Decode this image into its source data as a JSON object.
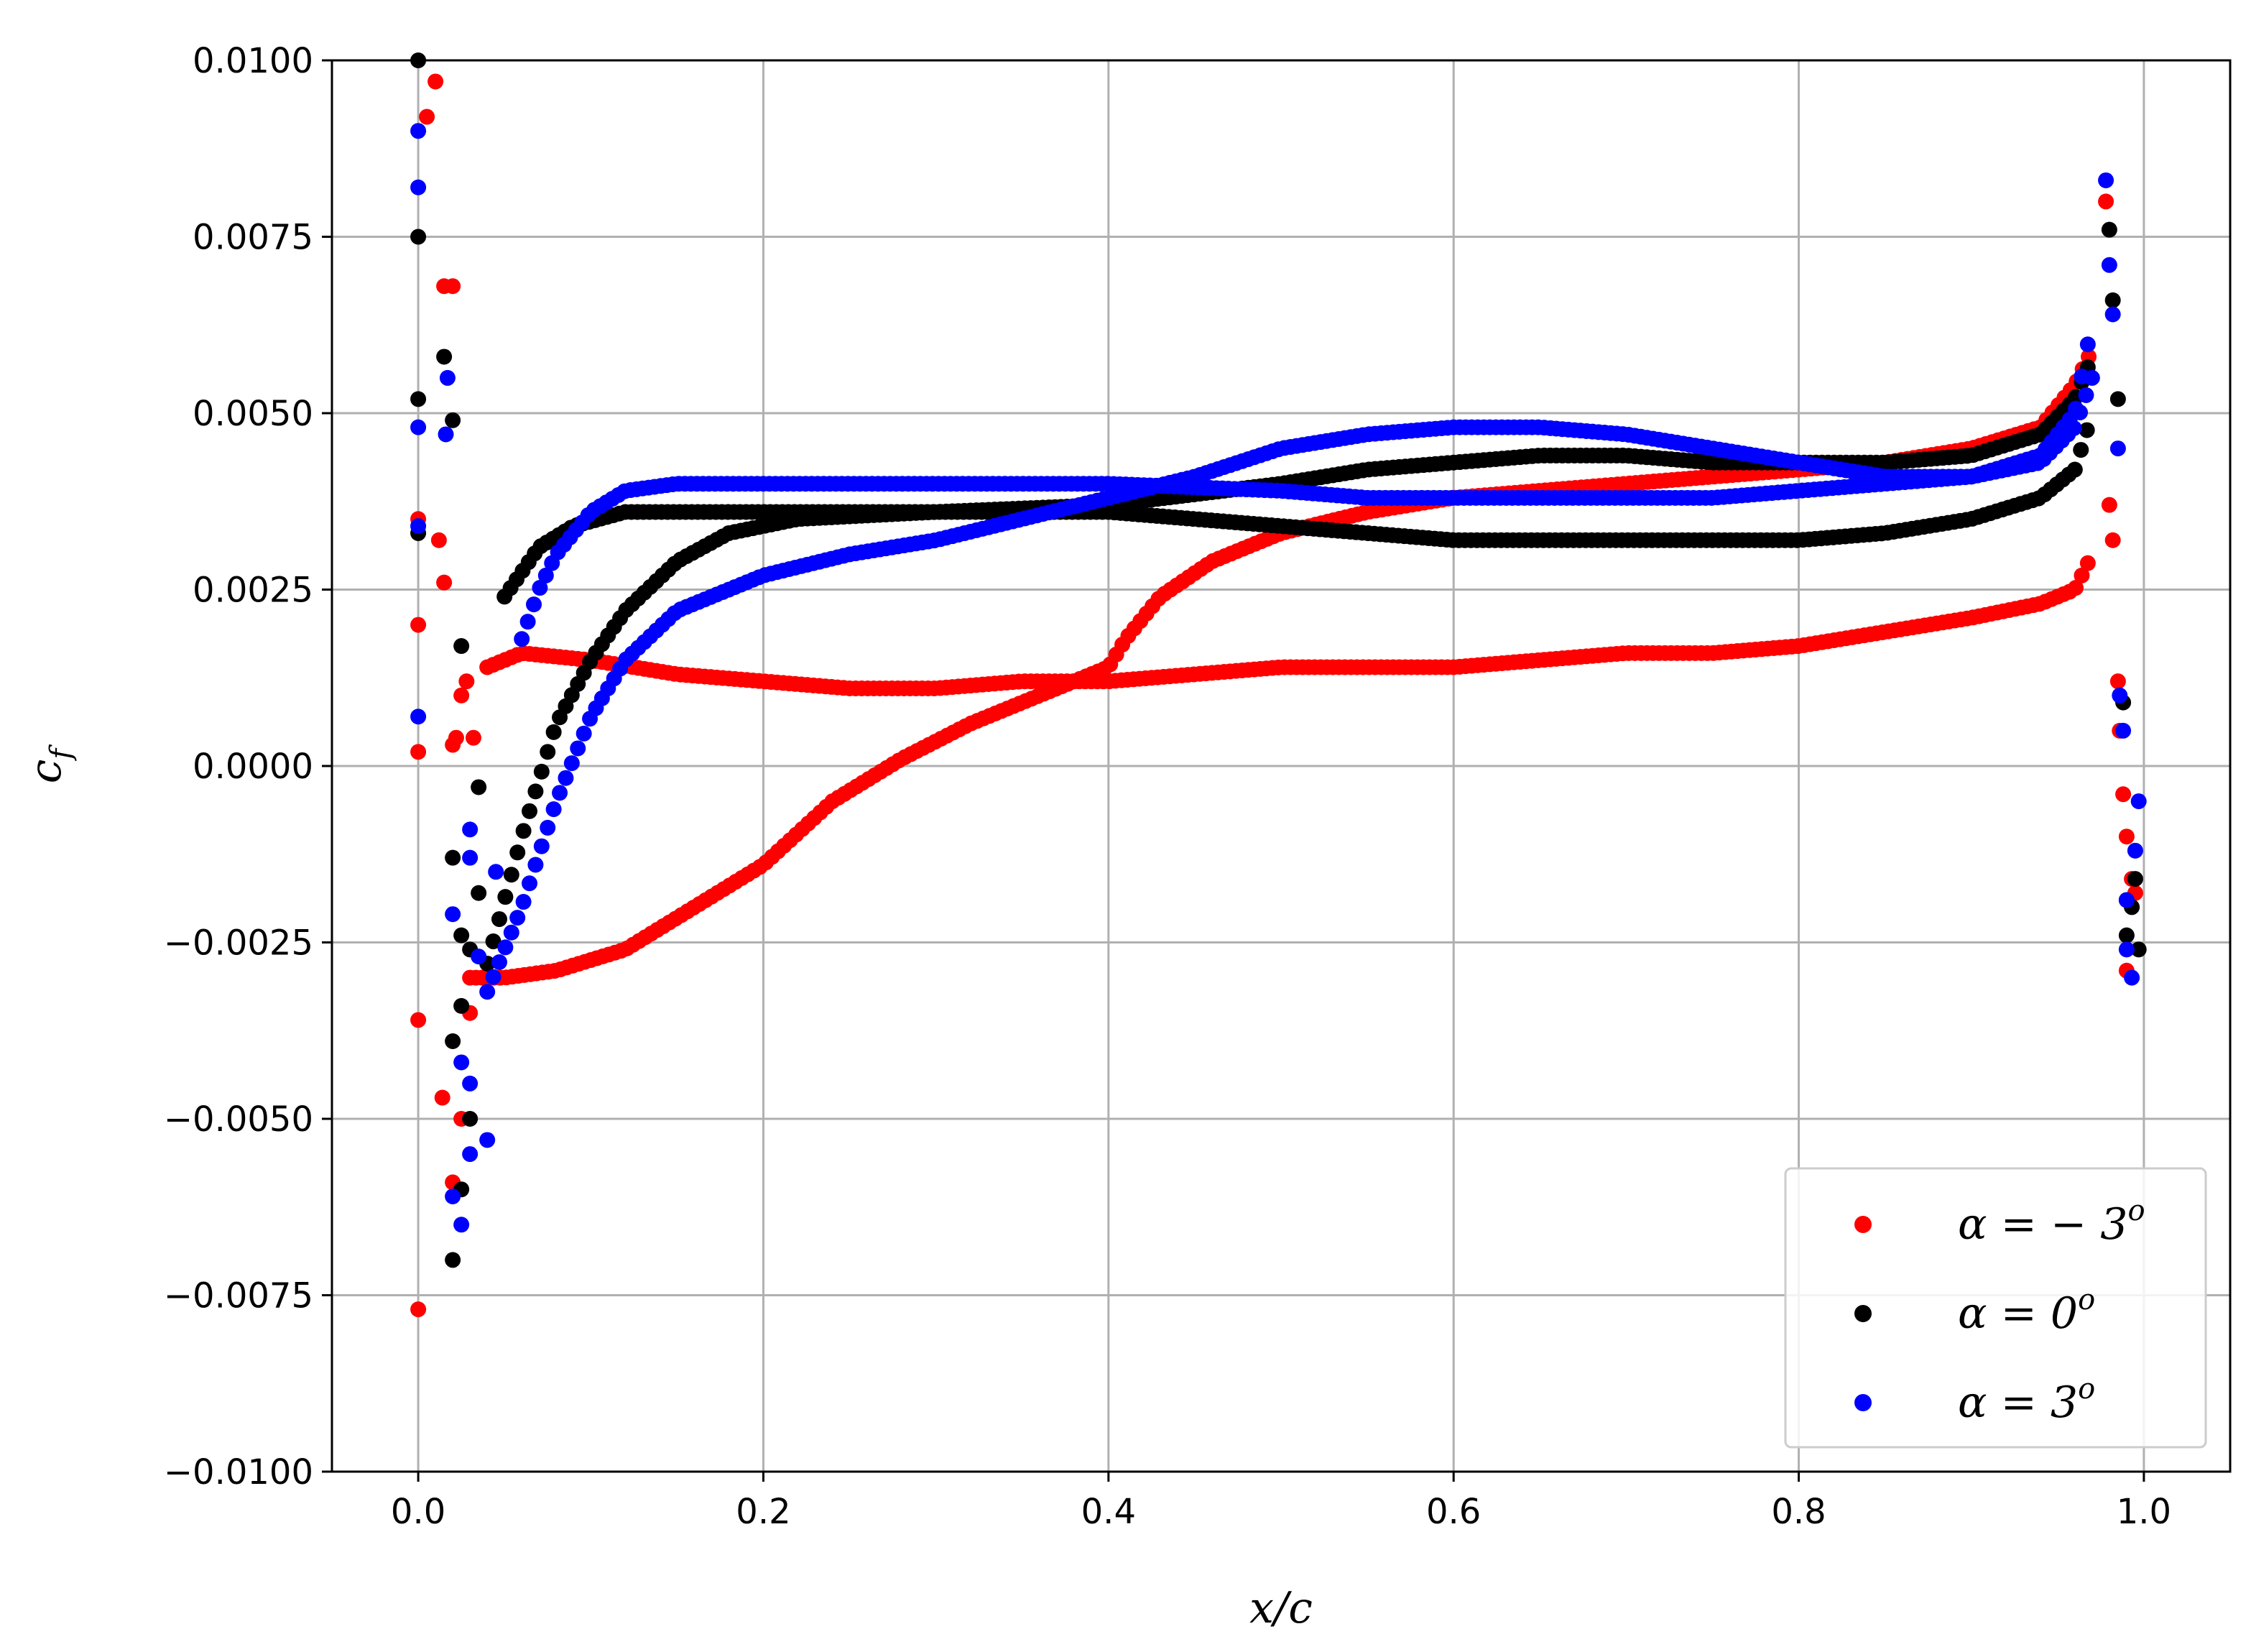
{
  "chart_data": {
    "type": "scatter",
    "title": "",
    "xlabel": "x/c",
    "ylabel": "c",
    "ylabel_sub": "f",
    "xlim": [
      -0.05,
      1.05
    ],
    "ylim": [
      -0.01,
      0.01
    ],
    "xticks": [
      "0.0",
      "0.2",
      "0.4",
      "0.6",
      "0.8",
      "1.0"
    ],
    "xtick_values": [
      0.0,
      0.2,
      0.4,
      0.6,
      0.8,
      1.0
    ],
    "yticks": [
      "0.0100",
      "0.0075",
      "0.0050",
      "0.0025",
      "0.0000",
      "−0.0025",
      "−0.0050",
      "−0.0075",
      "−0.0100"
    ],
    "ytick_values": [
      0.01,
      0.0075,
      0.005,
      0.0025,
      0.0,
      -0.0025,
      -0.005,
      -0.0075,
      -0.01
    ],
    "grid": true,
    "legend_position": "bottom-right",
    "series": [
      {
        "name": "α = − 3",
        "name_sup": "o",
        "color": "#ff0000",
        "branches": [
          {
            "x": [
              0.04,
              0.06,
              0.1,
              0.15,
              0.2,
              0.25,
              0.3,
              0.35,
              0.4,
              0.45,
              0.5,
              0.55,
              0.6,
              0.65,
              0.7,
              0.75,
              0.8,
              0.85,
              0.9,
              0.94,
              0.96,
              0.97
            ],
            "y": [
              0.0014,
              0.0016,
              0.0015,
              0.0013,
              0.0012,
              0.0011,
              0.0011,
              0.0012,
              0.0012,
              0.0013,
              0.0014,
              0.0014,
              0.0014,
              0.0015,
              0.0016,
              0.0016,
              0.0017,
              0.0019,
              0.0021,
              0.0023,
              0.0025,
              0.003
            ]
          },
          {
            "x": [
              0.03,
              0.05,
              0.08,
              0.12,
              0.16,
              0.2,
              0.24,
              0.28,
              0.32,
              0.36,
              0.4,
              0.41,
              0.43,
              0.46,
              0.5,
              0.55,
              0.6,
              0.65,
              0.7,
              0.75,
              0.8,
              0.85,
              0.9,
              0.94,
              0.96,
              0.97
            ],
            "y": [
              -0.003,
              -0.003,
              -0.0029,
              -0.0026,
              -0.002,
              -0.0014,
              -0.0005,
              0.0001,
              0.0006,
              0.001,
              0.0014,
              0.0018,
              0.0024,
              0.0029,
              0.0033,
              0.0036,
              0.0038,
              0.0039,
              0.004,
              0.0041,
              0.0042,
              0.0043,
              0.0045,
              0.0048,
              0.0054,
              0.0059
            ]
          },
          {
            "x": [
              0.0,
              0.0,
              0.005,
              0.01,
              0.015,
              0.02,
              0.0,
              0.0,
              0.0,
              0.012,
              0.015,
              0.02,
              0.022,
              0.025,
              0.028,
              0.032,
              0.014,
              0.02,
              0.025,
              0.03,
              0.978,
              0.98,
              0.982,
              0.985,
              0.986,
              0.988,
              0.99,
              0.99,
              0.993,
              0.995
            ],
            "y": [
              0.002,
              0.0035,
              0.0092,
              0.0097,
              0.0068,
              0.0068,
              -0.0036,
              -0.0077,
              0.0002,
              0.0032,
              0.0026,
              0.0003,
              0.0004,
              0.001,
              0.0012,
              0.0004,
              -0.0047,
              -0.0059,
              -0.005,
              -0.0035,
              0.008,
              0.0037,
              0.0032,
              0.0012,
              0.0005,
              -0.0004,
              -0.001,
              -0.0029,
              -0.0016,
              -0.0018
            ]
          }
        ]
      },
      {
        "name": "α = 0",
        "name_sup": "o",
        "color": "#000000",
        "branches": [
          {
            "x": [
              0.05,
              0.07,
              0.09,
              0.12,
              0.2,
              0.3,
              0.4,
              0.5,
              0.55,
              0.6,
              0.65,
              0.7,
              0.75,
              0.8,
              0.85,
              0.9,
              0.94,
              0.96,
              0.97
            ],
            "y": [
              0.0024,
              0.0031,
              0.0034,
              0.0036,
              0.0036,
              0.0036,
              0.0036,
              0.0034,
              0.0033,
              0.0032,
              0.0032,
              0.0032,
              0.0032,
              0.0032,
              0.0033,
              0.0035,
              0.0038,
              0.0042,
              0.005
            ]
          },
          {
            "x": [
              0.04,
              0.06,
              0.08,
              0.1,
              0.12,
              0.15,
              0.18,
              0.22,
              0.3,
              0.4,
              0.5,
              0.55,
              0.6,
              0.65,
              0.7,
              0.75,
              0.8,
              0.85,
              0.9,
              0.94,
              0.96,
              0.97
            ],
            "y": [
              -0.0028,
              -0.001,
              0.0006,
              0.0015,
              0.0022,
              0.0029,
              0.0033,
              0.0035,
              0.0036,
              0.0037,
              0.004,
              0.0042,
              0.0043,
              0.0044,
              0.0044,
              0.0043,
              0.0043,
              0.0043,
              0.0044,
              0.0047,
              0.0052,
              0.0058
            ]
          },
          {
            "x": [
              0.0,
              0.0,
              0.0,
              0.0,
              0.015,
              0.02,
              0.025,
              0.035,
              0.02,
              0.025,
              0.02,
              0.025,
              0.03,
              0.03,
              0.025,
              0.02,
              0.035,
              0.98,
              0.982,
              0.985,
              0.988,
              0.99,
              0.99,
              0.993,
              0.995,
              0.997
            ],
            "y": [
              0.01,
              0.0075,
              0.0052,
              0.0033,
              0.0058,
              0.0049,
              0.0017,
              -0.0003,
              -0.0013,
              -0.0024,
              -0.0039,
              -0.0034,
              -0.005,
              -0.0026,
              -0.006,
              -0.007,
              -0.0018,
              0.0076,
              0.0066,
              0.0052,
              0.0009,
              -0.0019,
              -0.0024,
              -0.002,
              -0.0016,
              -0.0026
            ]
          }
        ]
      },
      {
        "name": "α = 3",
        "name_sup": "o",
        "color": "#0000ff",
        "branches": [
          {
            "x": [
              0.06,
              0.07,
              0.08,
              0.09,
              0.1,
              0.12,
              0.15,
              0.2,
              0.3,
              0.4,
              0.5,
              0.55,
              0.6,
              0.65,
              0.7,
              0.75,
              0.8,
              0.85,
              0.9,
              0.94,
              0.96,
              0.97
            ],
            "y": [
              0.0018,
              0.0025,
              0.003,
              0.0033,
              0.0036,
              0.0039,
              0.004,
              0.004,
              0.004,
              0.004,
              0.0039,
              0.0038,
              0.0038,
              0.0038,
              0.0038,
              0.0038,
              0.0039,
              0.004,
              0.0041,
              0.0043,
              0.0048,
              0.0055
            ]
          },
          {
            "x": [
              0.04,
              0.06,
              0.08,
              0.1,
              0.12,
              0.15,
              0.2,
              0.25,
              0.3,
              0.35,
              0.4,
              0.45,
              0.5,
              0.55,
              0.6,
              0.65,
              0.7,
              0.75,
              0.8,
              0.85,
              0.9,
              0.94,
              0.96,
              0.97
            ],
            "y": [
              -0.0032,
              -0.002,
              -0.0005,
              0.0007,
              0.0015,
              0.0022,
              0.0027,
              0.003,
              0.0032,
              0.0035,
              0.0038,
              0.0041,
              0.0045,
              0.0047,
              0.0048,
              0.0048,
              0.0047,
              0.0045,
              0.0043,
              0.0041,
              0.0041,
              0.0044,
              0.005,
              0.0063
            ]
          },
          {
            "x": [
              0.0,
              0.0,
              0.0,
              0.0,
              0.0,
              0.017,
              0.016,
              0.03,
              0.03,
              0.045,
              0.035,
              0.02,
              0.025,
              0.03,
              0.04,
              0.03,
              0.025,
              0.02,
              0.978,
              0.98,
              0.982,
              0.985,
              0.986,
              0.988,
              0.99,
              0.99,
              0.993,
              0.995,
              0.997
            ],
            "y": [
              0.009,
              0.0082,
              0.0048,
              0.0034,
              0.0007,
              0.0055,
              0.0047,
              -0.0009,
              -0.0013,
              -0.0015,
              -0.0027,
              -0.0021,
              -0.0042,
              -0.0045,
              -0.0053,
              -0.0055,
              -0.0065,
              -0.0061,
              0.0083,
              0.0071,
              0.0064,
              0.0045,
              0.001,
              0.0005,
              -0.0019,
              -0.0026,
              -0.003,
              -0.0012,
              -0.0005
            ]
          }
        ]
      }
    ]
  }
}
